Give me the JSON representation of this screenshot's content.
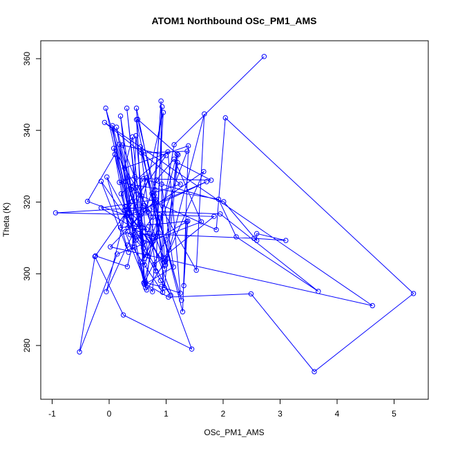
{
  "chart_data": {
    "type": "scatter",
    "title": "ATOM1 Northbound OSc_PM1_AMS",
    "xlabel": "OSc_PM1_AMS",
    "ylabel": "Theta (K)",
    "xlim": [
      -1.2,
      5.6
    ],
    "ylim": [
      265,
      365
    ],
    "x_ticks": [
      -1,
      0,
      1,
      2,
      3,
      4,
      5
    ],
    "x_tick_labels": [
      "-1",
      "0",
      "1",
      "2",
      "3",
      "4",
      "5"
    ],
    "y_ticks": [
      280,
      300,
      320,
      340,
      360
    ],
    "y_tick_labels": [
      "280",
      "300",
      "320",
      "340",
      "360"
    ],
    "grid": false,
    "legend": "none",
    "mode": "lines+markers",
    "color": "#0000ff",
    "points": [
      [
        2.72,
        360.6
      ],
      [
        1.14,
        336.0
      ],
      [
        0.87,
        311.4
      ],
      [
        0.55,
        303.3
      ],
      [
        0.66,
        295.5
      ],
      [
        0.99,
        303.5
      ],
      [
        1.19,
        333.4
      ],
      [
        0.61,
        297.5
      ],
      [
        0.48,
        346.2
      ],
      [
        0.79,
        322.0
      ],
      [
        1.53,
        301.0
      ],
      [
        1.67,
        344.6
      ],
      [
        0.97,
        301.4
      ],
      [
        0.41,
        320.2
      ],
      [
        -0.06,
        346.2
      ],
      [
        0.64,
        296.1
      ],
      [
        0.75,
        309.9
      ],
      [
        0.91,
        348.2
      ],
      [
        0.94,
        294.8
      ],
      [
        0.41,
        307.5
      ],
      [
        0.47,
        338.5
      ],
      [
        0.68,
        305.0
      ],
      [
        0.06,
        341.3
      ],
      [
        0.28,
        318.7
      ],
      [
        0.66,
        312.4
      ],
      [
        0.33,
        312.9
      ],
      [
        0.08,
        335.0
      ],
      [
        0.77,
        315.8
      ],
      [
        0.47,
        309.4
      ],
      [
        0.18,
        336.1
      ],
      [
        0.56,
        312.9
      ],
      [
        0.13,
        340.9
      ],
      [
        0.28,
        325.8
      ],
      [
        0.45,
        307.4
      ],
      [
        0.2,
        344.0
      ],
      [
        0.39,
        323.6
      ],
      [
        0.6,
        307.2
      ],
      [
        0.37,
        310.9
      ],
      [
        0.3,
        316.3
      ],
      [
        -0.38,
        320.2
      ],
      [
        0.1,
        333.3
      ],
      [
        0.36,
        317.0
      ],
      [
        0.05,
        340.7
      ],
      [
        0.42,
        313.9
      ],
      [
        0.59,
        318.5
      ],
      [
        -0.94,
        317.0
      ],
      [
        1.84,
        316.0
      ],
      [
        0.79,
        302.6
      ],
      [
        0.76,
        295.0
      ],
      [
        0.63,
        297.9
      ],
      [
        0.31,
        346.2
      ],
      [
        0.62,
        302.5
      ],
      [
        1.37,
        334.2
      ],
      [
        0.57,
        333.7
      ],
      [
        0.8,
        319.8
      ],
      [
        1.27,
        292.6
      ],
      [
        0.66,
        326.8
      ],
      [
        0.39,
        315.8
      ],
      [
        0.99,
        302.5
      ],
      [
        0.62,
        319.0
      ],
      [
        0.68,
        317.3
      ],
      [
        0.23,
        335.9
      ],
      [
        1.0,
        333.0
      ],
      [
        -0.24,
        305.0
      ],
      [
        0.32,
        302.0
      ],
      [
        0.95,
        345.0
      ],
      [
        0.82,
        310.5
      ],
      [
        0.52,
        311.2
      ],
      [
        2.54,
        309.9
      ],
      [
        3.1,
        309.3
      ],
      [
        2.59,
        311.2
      ],
      [
        2.59,
        309.3
      ],
      [
        2.01,
        320.1
      ],
      [
        0.45,
        327.1
      ],
      [
        0.18,
        325.5
      ],
      [
        1.92,
        320.8
      ],
      [
        2.23,
        310.3
      ],
      [
        3.67,
        295.1
      ],
      [
        1.95,
        316.7
      ],
      [
        0.29,
        317.7
      ],
      [
        0.2,
        312.9
      ],
      [
        1.38,
        314.7
      ],
      [
        1.31,
        296.7
      ],
      [
        1.36,
        314.5
      ],
      [
        0.78,
        309.2
      ],
      [
        -0.14,
        318.4
      ],
      [
        0.82,
        320.7
      ],
      [
        0.02,
        307.5
      ],
      [
        4.62,
        291.1
      ],
      [
        -0.08,
        342.2
      ],
      [
        1.25,
        325.0
      ],
      [
        0.75,
        322.4
      ],
      [
        0.95,
        304.5
      ],
      [
        0.48,
        343.0
      ],
      [
        0.6,
        308.8
      ],
      [
        -0.14,
        325.8
      ],
      [
        0.34,
        306.0
      ],
      [
        -0.04,
        327.0
      ],
      [
        1.08,
        294.0
      ],
      [
        0.9,
        298.1
      ],
      [
        0.3,
        316.0
      ],
      [
        1.71,
        325.7
      ],
      [
        0.76,
        318.6
      ],
      [
        1.66,
        328.5
      ],
      [
        0.97,
        303.2
      ],
      [
        0.92,
        325.0
      ],
      [
        1.13,
        301.9
      ],
      [
        0.62,
        297.0
      ],
      [
        0.21,
        322.3
      ],
      [
        1.03,
        334.0
      ],
      [
        1.25,
        294.6
      ],
      [
        0.91,
        296.4
      ],
      [
        0.64,
        297.5
      ],
      [
        0.28,
        311.7
      ],
      [
        0.74,
        308.5
      ],
      [
        0.27,
        317.7
      ],
      [
        0.6,
        326.5
      ],
      [
        1.79,
        326.1
      ],
      [
        1.2,
        331.0
      ],
      [
        0.97,
        296.1
      ],
      [
        0.8,
        323.5
      ],
      [
        0.5,
        343.1
      ],
      [
        1.21,
        333.2
      ],
      [
        1.0,
        309.5
      ],
      [
        0.61,
        297.4
      ],
      [
        1.04,
        293.5
      ],
      [
        2.49,
        294.4
      ],
      [
        3.6,
        272.7
      ],
      [
        5.34,
        294.5
      ],
      [
        2.04,
        343.5
      ],
      [
        1.88,
        312.3
      ],
      [
        0.57,
        321.7
      ],
      [
        0.4,
        324.0
      ],
      [
        -0.05,
        295.0
      ],
      [
        0.32,
        308.0
      ],
      [
        0.63,
        317.5
      ],
      [
        0.83,
        326.2
      ],
      [
        1.14,
        332.0
      ],
      [
        1.62,
        314.5
      ],
      [
        0.14,
        305.5
      ],
      [
        -0.52,
        278.2
      ],
      [
        -0.25,
        304.8
      ],
      [
        0.25,
        288.5
      ],
      [
        1.45,
        279.0
      ],
      [
        0.7,
        311.2
      ],
      [
        0.93,
        346.6
      ],
      [
        0.82,
        300.8
      ],
      [
        0.55,
        335.4
      ],
      [
        1.29,
        289.4
      ],
      [
        1.39,
        335.7
      ],
      [
        0.27,
        329.5
      ],
      [
        0.41,
        338.2
      ],
      [
        0.62,
        304.3
      ],
      [
        0.88,
        316.5
      ]
    ]
  }
}
